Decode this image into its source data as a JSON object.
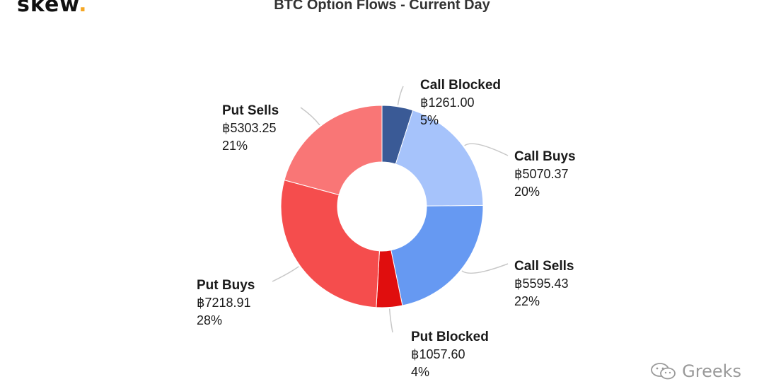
{
  "brand": {
    "logo_text": "skew",
    "logo_dot": ".",
    "accent": "#f5a623"
  },
  "watermark": {
    "text": "Greeks",
    "icon": "wechat-icon"
  },
  "chart_data": {
    "type": "pie",
    "variant": "donut",
    "title": "BTC Option Flows - Current Day",
    "currency_symbol": "฿",
    "slices": [
      {
        "name": "Call Blocked",
        "value": 1261.0,
        "value_label": "฿1261.00",
        "percent_label": "5%",
        "color": "#3a5a96"
      },
      {
        "name": "Call Buys",
        "value": 5070.37,
        "value_label": "฿5070.37",
        "percent_label": "20%",
        "color": "#a6c3fb"
      },
      {
        "name": "Call Sells",
        "value": 5595.43,
        "value_label": "฿5595.43",
        "percent_label": "22%",
        "color": "#6699f2"
      },
      {
        "name": "Put Blocked",
        "value": 1057.6,
        "value_label": "฿1057.60",
        "percent_label": "4%",
        "color": "#e00e0e"
      },
      {
        "name": "Put Buys",
        "value": 7218.91,
        "value_label": "฿7218.91",
        "percent_label": "28%",
        "color": "#f54d4d"
      },
      {
        "name": "Put Sells",
        "value": 5303.25,
        "value_label": "฿5303.25",
        "percent_label": "21%",
        "color": "#f97676"
      }
    ],
    "legend": "none",
    "labels": "outside-with-connectors"
  }
}
